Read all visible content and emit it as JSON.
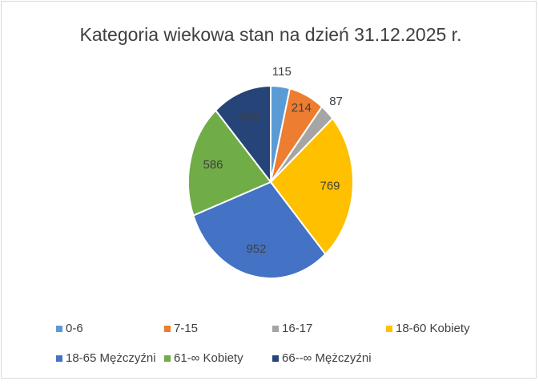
{
  "chart_data": {
    "type": "pie",
    "title": "Kategoria wiekowa stan na dzień 31.12.2025 r.",
    "categories": [
      "0-6",
      "7-15",
      "16-17",
      "18-60 Kobiety",
      "18-65 Mężczyźni",
      "61-∞ Kobiety",
      "66--∞ Mężczyźni"
    ],
    "values": [
      115,
      214,
      87,
      769,
      952,
      586,
      358
    ],
    "colors": [
      "#5b9bd5",
      "#ed7d31",
      "#a5a5a5",
      "#ffc000",
      "#4472c4",
      "#70ad47",
      "#264478"
    ],
    "legend": "bottom"
  }
}
